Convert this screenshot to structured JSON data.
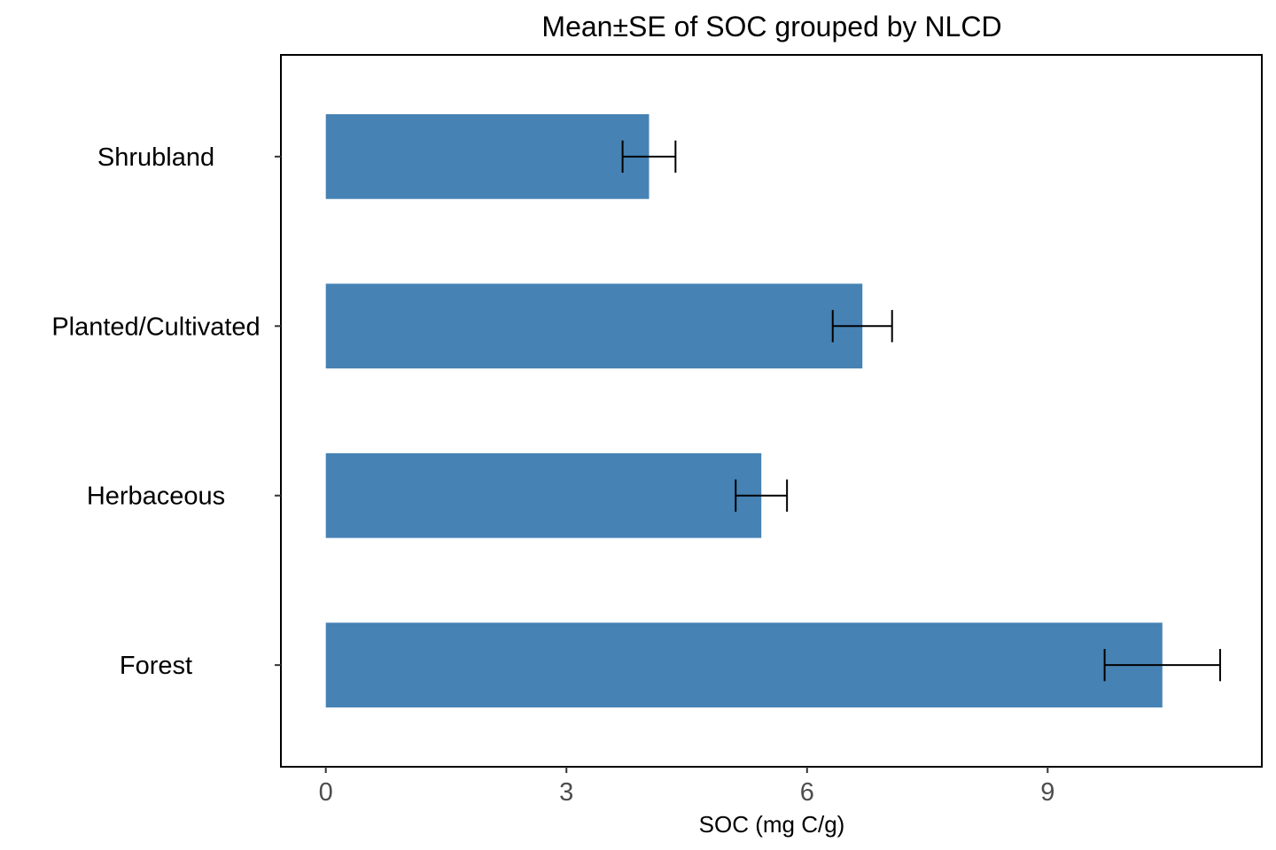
{
  "chart_data": {
    "type": "bar",
    "orientation": "horizontal",
    "title": "Mean±SE of SOC grouped by NLCD",
    "xlabel": "SOC (mg C/g)",
    "ylabel": "",
    "categories": [
      "Forest",
      "Herbaceous",
      "Planted/Cultivated",
      "Shrubland"
    ],
    "values": [
      10.43,
      5.43,
      6.69,
      4.03
    ],
    "error": [
      0.72,
      0.32,
      0.37,
      0.33
    ],
    "xlim": [
      -0.56,
      11.67
    ],
    "xticks": [
      0,
      3,
      6,
      9
    ],
    "grid": false,
    "legend": "none",
    "colors": {
      "bar": "#4682B4",
      "error_bar": "#000000",
      "panel_border": "#000000",
      "tick_label": "#4d4d4d"
    }
  }
}
